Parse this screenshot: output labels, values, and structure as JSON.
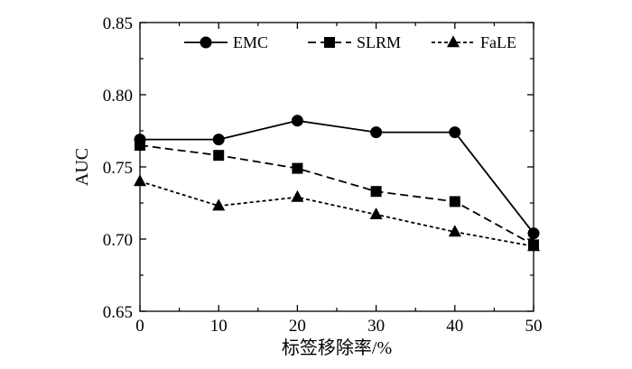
{
  "chart_data": {
    "type": "line",
    "title": "",
    "xlabel": "标签移除率/%",
    "ylabel": "AUC",
    "x": [
      0,
      10,
      20,
      30,
      40,
      50
    ],
    "x_tick_labels": [
      "0",
      "10",
      "20",
      "30",
      "40",
      "50"
    ],
    "y_tick_labels": [
      "0.65",
      "0.70",
      "0.75",
      "0.80",
      "0.85"
    ],
    "xlim": [
      0,
      50
    ],
    "ylim": [
      0.65,
      0.85
    ],
    "legend_position": "top-right",
    "series": [
      {
        "name": "EMC",
        "marker": "circle",
        "line": "solid",
        "values": [
          0.769,
          0.769,
          0.782,
          0.774,
          0.774,
          0.704
        ]
      },
      {
        "name": "SLRM",
        "marker": "square",
        "line": "dashed",
        "values": [
          0.765,
          0.758,
          0.749,
          0.733,
          0.726,
          0.696
        ]
      },
      {
        "name": "FaLE",
        "marker": "triangle",
        "line": "dotted",
        "values": [
          0.74,
          0.723,
          0.729,
          0.717,
          0.705,
          0.695
        ]
      }
    ],
    "colors": {
      "line": "#000000",
      "background": "#ffffff"
    }
  }
}
